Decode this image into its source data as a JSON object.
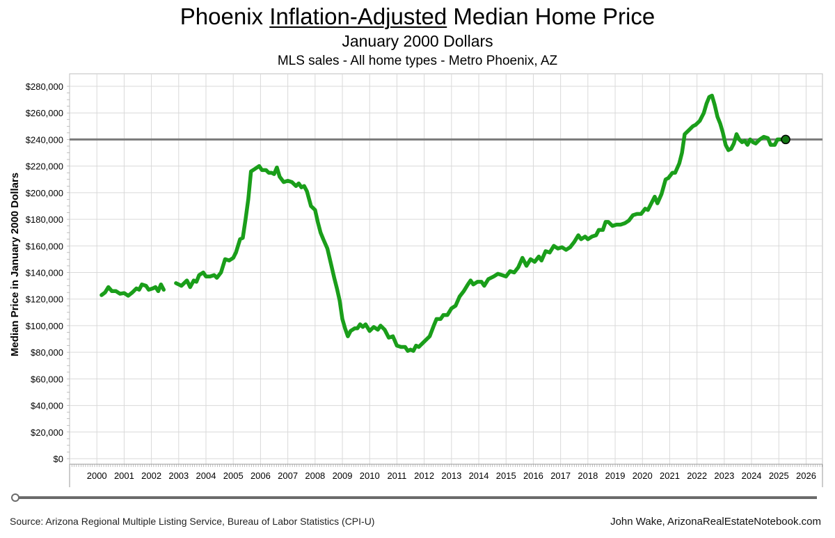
{
  "title_pre": "Phoenix ",
  "title_underlined": "Inflation-Adjusted",
  "title_post": " Median Home Price",
  "subtitle": "January 2000 Dollars",
  "subtitle2": "MLS sales - All home types - Metro Phoenix, AZ",
  "source": "Source: Arizona Regional Multiple Listing Service, Bureau of Labor Statistics (CPI-U)",
  "credit": "John Wake, ArizonaRealEstateNotebook.com",
  "colors": {
    "line": "#1a9e1a",
    "reference": "#7a7a7a",
    "grid": "#d9d9d9",
    "end_marker": "#147814"
  },
  "chart_data": {
    "type": "line",
    "title": "Phoenix Inflation-Adjusted Median Home Price",
    "ylabel": "Median Price in January 2000 Dollars",
    "xlabel": "",
    "xlim": [
      1999.0,
      2026.6
    ],
    "ylim": [
      0,
      280000
    ],
    "x_ticks": [
      "2000",
      "2001",
      "2002",
      "2003",
      "2004",
      "2005",
      "2006",
      "2007",
      "2008",
      "2009",
      "2010",
      "2011",
      "2012",
      "2013",
      "2014",
      "2015",
      "2016",
      "2017",
      "2018",
      "2019",
      "2020",
      "2021",
      "2022",
      "2023",
      "2024",
      "2025",
      "2026"
    ],
    "y_ticks": [
      "$0",
      "$20,000",
      "$40,000",
      "$60,000",
      "$80,000",
      "$100,000",
      "$120,000",
      "$140,000",
      "$160,000",
      "$180,000",
      "$200,000",
      "$220,000",
      "$240,000",
      "$260,000",
      "$280,000"
    ],
    "reference_line": 240000,
    "grid": true,
    "series": [
      {
        "segments": [
          [
            [
              2000.17,
              123000
            ],
            [
              2000.3,
              125000
            ],
            [
              2000.42,
              129000
            ],
            [
              2000.55,
              126000
            ],
            [
              2000.7,
              126000
            ],
            [
              2000.85,
              124000
            ],
            [
              2001.0,
              124500
            ],
            [
              2001.15,
              122500
            ],
            [
              2001.3,
              125000
            ],
            [
              2001.45,
              128000
            ],
            [
              2001.55,
              127000
            ],
            [
              2001.65,
              131000
            ],
            [
              2001.8,
              130000
            ],
            [
              2001.9,
              127000
            ],
            [
              2002.05,
              128000
            ],
            [
              2002.15,
              129000
            ],
            [
              2002.25,
              126000
            ],
            [
              2002.35,
              131000
            ],
            [
              2002.45,
              127000
            ]
          ],
          [
            [
              2002.9,
              132000
            ],
            [
              2003.0,
              131000
            ],
            [
              2003.1,
              130000
            ],
            [
              2003.2,
              132000
            ],
            [
              2003.3,
              134000
            ],
            [
              2003.42,
              129000
            ],
            [
              2003.55,
              134000
            ],
            [
              2003.65,
              133000
            ],
            [
              2003.75,
              138000
            ],
            [
              2003.9,
              140000
            ],
            [
              2004.0,
              137000
            ],
            [
              2004.15,
              137000
            ],
            [
              2004.3,
              138000
            ],
            [
              2004.4,
              136000
            ],
            [
              2004.55,
              140000
            ],
            [
              2004.7,
              150000
            ],
            [
              2004.85,
              149000
            ],
            [
              2005.0,
              151000
            ],
            [
              2005.1,
              155000
            ],
            [
              2005.25,
              165000
            ],
            [
              2005.35,
              166000
            ],
            [
              2005.45,
              180000
            ],
            [
              2005.55,
              195000
            ],
            [
              2005.65,
              216000
            ],
            [
              2005.8,
              218000
            ],
            [
              2005.95,
              220000
            ],
            [
              2006.05,
              217000
            ],
            [
              2006.2,
              217000
            ],
            [
              2006.3,
              215000
            ],
            [
              2006.4,
              215000
            ],
            [
              2006.5,
              214000
            ],
            [
              2006.6,
              219000
            ],
            [
              2006.7,
              212000
            ],
            [
              2006.85,
              208000
            ],
            [
              2007.0,
              209000
            ],
            [
              2007.15,
              208000
            ],
            [
              2007.3,
              205000
            ],
            [
              2007.4,
              207000
            ],
            [
              2007.5,
              204000
            ],
            [
              2007.6,
              205000
            ],
            [
              2007.7,
              201000
            ],
            [
              2007.85,
              190000
            ],
            [
              2008.0,
              187000
            ],
            [
              2008.1,
              178000
            ],
            [
              2008.2,
              170000
            ],
            [
              2008.3,
              165000
            ],
            [
              2008.45,
              158000
            ],
            [
              2008.6,
              145000
            ],
            [
              2008.7,
              136000
            ],
            [
              2008.8,
              128000
            ],
            [
              2008.9,
              119000
            ],
            [
              2009.0,
              105000
            ],
            [
              2009.1,
              98000
            ],
            [
              2009.2,
              92000
            ],
            [
              2009.3,
              96000
            ],
            [
              2009.45,
              98000
            ],
            [
              2009.55,
              98000
            ],
            [
              2009.65,
              101000
            ],
            [
              2009.75,
              99000
            ],
            [
              2009.85,
              101000
            ],
            [
              2010.0,
              96000
            ],
            [
              2010.15,
              99000
            ],
            [
              2010.3,
              97000
            ],
            [
              2010.4,
              100000
            ],
            [
              2010.55,
              97000
            ],
            [
              2010.7,
              91000
            ],
            [
              2010.85,
              92000
            ],
            [
              2011.0,
              85000
            ],
            [
              2011.15,
              84000
            ],
            [
              2011.3,
              84000
            ],
            [
              2011.4,
              81000
            ],
            [
              2011.5,
              82000
            ],
            [
              2011.6,
              81000
            ],
            [
              2011.7,
              85000
            ],
            [
              2011.8,
              84000
            ],
            [
              2012.0,
              88000
            ],
            [
              2012.2,
              92000
            ],
            [
              2012.35,
              100000
            ],
            [
              2012.45,
              105000
            ],
            [
              2012.6,
              105000
            ],
            [
              2012.7,
              108000
            ],
            [
              2012.85,
              108000
            ],
            [
              2013.0,
              113000
            ],
            [
              2013.15,
              115000
            ],
            [
              2013.3,
              122000
            ],
            [
              2013.45,
              126000
            ],
            [
              2013.6,
              131000
            ],
            [
              2013.7,
              134000
            ],
            [
              2013.8,
              131000
            ],
            [
              2013.95,
              133000
            ],
            [
              2014.1,
              133000
            ],
            [
              2014.2,
              130000
            ],
            [
              2014.35,
              135000
            ],
            [
              2014.55,
              137000
            ],
            [
              2014.7,
              139000
            ],
            [
              2014.85,
              138000
            ],
            [
              2015.0,
              137000
            ],
            [
              2015.15,
              141000
            ],
            [
              2015.3,
              140000
            ],
            [
              2015.45,
              144000
            ],
            [
              2015.6,
              151000
            ],
            [
              2015.75,
              145000
            ],
            [
              2015.9,
              150000
            ],
            [
              2016.05,
              148000
            ],
            [
              2016.2,
              152000
            ],
            [
              2016.3,
              149000
            ],
            [
              2016.45,
              156000
            ],
            [
              2016.6,
              155000
            ],
            [
              2016.75,
              160000
            ],
            [
              2016.9,
              158000
            ],
            [
              2017.05,
              159000
            ],
            [
              2017.2,
              157000
            ],
            [
              2017.35,
              159000
            ],
            [
              2017.5,
              163000
            ],
            [
              2017.65,
              168000
            ],
            [
              2017.75,
              165000
            ],
            [
              2017.9,
              167000
            ],
            [
              2018.0,
              165000
            ],
            [
              2018.15,
              167000
            ],
            [
              2018.3,
              168000
            ],
            [
              2018.4,
              172000
            ],
            [
              2018.55,
              172000
            ],
            [
              2018.65,
              178000
            ],
            [
              2018.75,
              178000
            ],
            [
              2018.9,
              175000
            ],
            [
              2019.05,
              176000
            ],
            [
              2019.2,
              176000
            ],
            [
              2019.35,
              177000
            ],
            [
              2019.5,
              179000
            ],
            [
              2019.65,
              183000
            ],
            [
              2019.8,
              184000
            ],
            [
              2019.95,
              184000
            ],
            [
              2020.1,
              188000
            ],
            [
              2020.2,
              187000
            ],
            [
              2020.3,
              191000
            ],
            [
              2020.45,
              197000
            ],
            [
              2020.55,
              192000
            ],
            [
              2020.7,
              199000
            ],
            [
              2020.85,
              210000
            ],
            [
              2020.95,
              211000
            ],
            [
              2021.1,
              215000
            ],
            [
              2021.2,
              215000
            ],
            [
              2021.35,
              222000
            ],
            [
              2021.45,
              230000
            ],
            [
              2021.55,
              244000
            ],
            [
              2021.7,
              247000
            ],
            [
              2021.85,
              250000
            ],
            [
              2021.95,
              251000
            ],
            [
              2022.1,
              254000
            ],
            [
              2022.25,
              260000
            ],
            [
              2022.35,
              267000
            ],
            [
              2022.45,
              272000
            ],
            [
              2022.55,
              273000
            ],
            [
              2022.65,
              266000
            ],
            [
              2022.75,
              257000
            ],
            [
              2022.85,
              252000
            ],
            [
              2022.95,
              245000
            ],
            [
              2023.05,
              236000
            ],
            [
              2023.15,
              232000
            ],
            [
              2023.25,
              233000
            ],
            [
              2023.35,
              237000
            ],
            [
              2023.45,
              244000
            ],
            [
              2023.55,
              240000
            ],
            [
              2023.65,
              238000
            ],
            [
              2023.75,
              239000
            ],
            [
              2023.85,
              236000
            ],
            [
              2023.95,
              240000
            ],
            [
              2024.05,
              238000
            ],
            [
              2024.15,
              237000
            ],
            [
              2024.3,
              240000
            ],
            [
              2024.45,
              242000
            ],
            [
              2024.6,
              241000
            ],
            [
              2024.7,
              236000
            ],
            [
              2024.85,
              236000
            ],
            [
              2024.95,
              240000
            ],
            [
              2025.1,
              240000
            ],
            [
              2025.25,
              240000
            ]
          ]
        ]
      }
    ]
  }
}
